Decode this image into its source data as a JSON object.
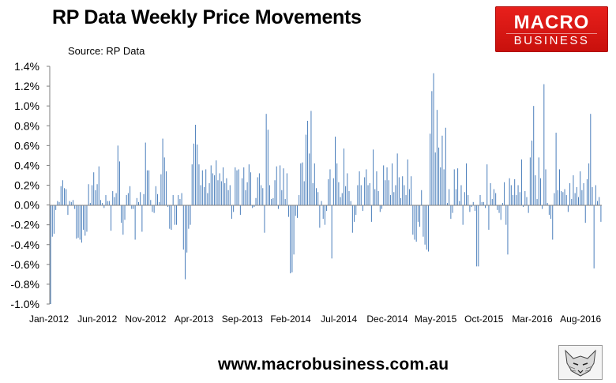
{
  "title": "RP Data Weekly Price Movements",
  "subtitle": "Source: RP Data",
  "logo": {
    "line1": "MACRO",
    "line2": "BUSINESS",
    "color": "#d9140f"
  },
  "footer": "www.macrobusiness.com.au",
  "chart_data": {
    "type": "bar",
    "title": "RP Data Weekly Price Movements",
    "source": "Source: RP Data",
    "xlabel": "",
    "ylabel": "",
    "ylim": [
      -1.0,
      1.4
    ],
    "yticks": [
      "-1.0%",
      "-0.8%",
      "-0.6%",
      "-0.4%",
      "-0.2%",
      "0.0%",
      "0.2%",
      "0.4%",
      "0.6%",
      "0.8%",
      "1.0%",
      "1.2%",
      "1.4%"
    ],
    "xticks": [
      "Jan-2012",
      "Jun-2012",
      "Nov-2012",
      "Apr-2013",
      "Sep-2013",
      "Feb-2014",
      "Jul-2014",
      "Dec-2014",
      "May-2015",
      "Oct-2015",
      "Mar-2016",
      "Aug-2016"
    ],
    "grid": false,
    "bar_color": "#4a7ebb",
    "unit": "%",
    "values": [
      -1.0,
      -0.32,
      -0.29,
      -0.05,
      0.04,
      0.03,
      0.19,
      0.25,
      0.17,
      0.16,
      -0.1,
      0.04,
      0.03,
      0.05,
      -0.04,
      -0.34,
      -0.33,
      -0.35,
      -0.38,
      -0.25,
      -0.31,
      -0.27,
      0.21,
      0.02,
      0.2,
      0.33,
      0.15,
      0.21,
      0.39,
      0.05,
      0.02,
      -0.03,
      0.1,
      0.04,
      0.04,
      -0.26,
      0.14,
      0.08,
      0.12,
      0.6,
      0.44,
      -0.18,
      -0.3,
      -0.15,
      0.1,
      0.12,
      0.19,
      -0.04,
      -0.04,
      -0.35,
      0.07,
      0.03,
      0.13,
      -0.27,
      0.11,
      0.63,
      0.35,
      0.35,
      0.05,
      -0.07,
      -0.08,
      0.19,
      0.11,
      0.03,
      0.31,
      0.67,
      0.48,
      0.34,
      -0.02,
      -0.24,
      -0.25,
      0.1,
      -0.2,
      -0.2,
      0.1,
      0.06,
      0.12,
      -0.45,
      -0.75,
      -0.48,
      -0.24,
      -0.2,
      0.41,
      0.62,
      0.81,
      0.61,
      0.41,
      0.2,
      0.35,
      0.18,
      0.36,
      0.12,
      0.22,
      0.4,
      0.32,
      0.3,
      0.45,
      0.25,
      0.32,
      0.24,
      0.38,
      0.22,
      0.27,
      0.15,
      0.2,
      -0.14,
      -0.07,
      0.38,
      0.35,
      0.36,
      -0.1,
      0.27,
      0.38,
      0.15,
      0.23,
      0.41,
      0.33,
      -0.03,
      -0.02,
      0.07,
      0.28,
      0.32,
      0.2,
      0.17,
      -0.28,
      0.92,
      0.76,
      0.2,
      0.06,
      0.07,
      0.25,
      0.39,
      -0.04,
      0.4,
      0.15,
      0.37,
      0.06,
      0.32,
      -0.12,
      -0.69,
      -0.68,
      -0.5,
      -0.11,
      -0.13,
      0.1,
      0.42,
      0.43,
      0.24,
      0.71,
      0.85,
      0.52,
      0.95,
      0.22,
      0.42,
      0.17,
      0.13,
      -0.23,
      0.04,
      -0.14,
      -0.2,
      -0.06,
      0.26,
      0.36,
      -0.54,
      0.27,
      0.69,
      0.42,
      0.23,
      0.08,
      0.12,
      0.57,
      0.19,
      0.32,
      0.14,
      0.04,
      -0.28,
      -0.17,
      -0.1,
      0.2,
      0.34,
      0.2,
      -0.06,
      0.28,
      0.36,
      0.2,
      0.22,
      -0.17,
      0.56,
      0.16,
      0.34,
      0.14,
      -0.07,
      -0.04,
      0.4,
      0.25,
      0.38,
      0.25,
      0.1,
      0.42,
      0.13,
      0.2,
      0.52,
      0.28,
      0.07,
      0.29,
      0.2,
      0.1,
      0.46,
      0.16,
      0.29,
      -0.3,
      -0.35,
      -0.37,
      -0.17,
      -0.22,
      0.15,
      -0.32,
      -0.4,
      -0.45,
      -0.47,
      0.72,
      1.15,
      1.33,
      0.53,
      0.96,
      0.58,
      0.38,
      0.7,
      0.36,
      0.78,
      0.02,
      0.16,
      -0.14,
      -0.08,
      0.36,
      0.16,
      0.37,
      0.04,
      0.2,
      -0.2,
      0.13,
      0.42,
      0.1,
      -0.07,
      -0.02,
      0.03,
      -0.06,
      -0.62,
      -0.62,
      0.1,
      0.03,
      0.03,
      -0.03,
      0.41,
      -0.25,
      0.22,
      0.06,
      0.16,
      0.12,
      -0.05,
      -0.08,
      -0.15,
      0.02,
      0.23,
      -0.2,
      -0.5,
      0.27,
      0.2,
      0.1,
      0.26,
      0.1,
      0.2,
      0.13,
      0.46,
      -0.02,
      0.14,
      0.08,
      -0.08,
      0.48,
      0.65,
      1.0,
      0.3,
      0.06,
      0.48,
      0.27,
      -0.04,
      1.22,
      0.36,
      0.02,
      -0.1,
      -0.14,
      -0.35,
      0.12,
      0.73,
      0.15,
      0.36,
      0.14,
      0.13,
      0.16,
      0.1,
      -0.07,
      0.22,
      0.06,
      0.3,
      0.12,
      0.18,
      0.08,
      0.34,
      0.15,
      0.22,
      -0.18,
      0.26,
      0.42,
      0.92,
      0.18,
      -0.64,
      0.2,
      0.04,
      0.08,
      -0.17
    ]
  }
}
